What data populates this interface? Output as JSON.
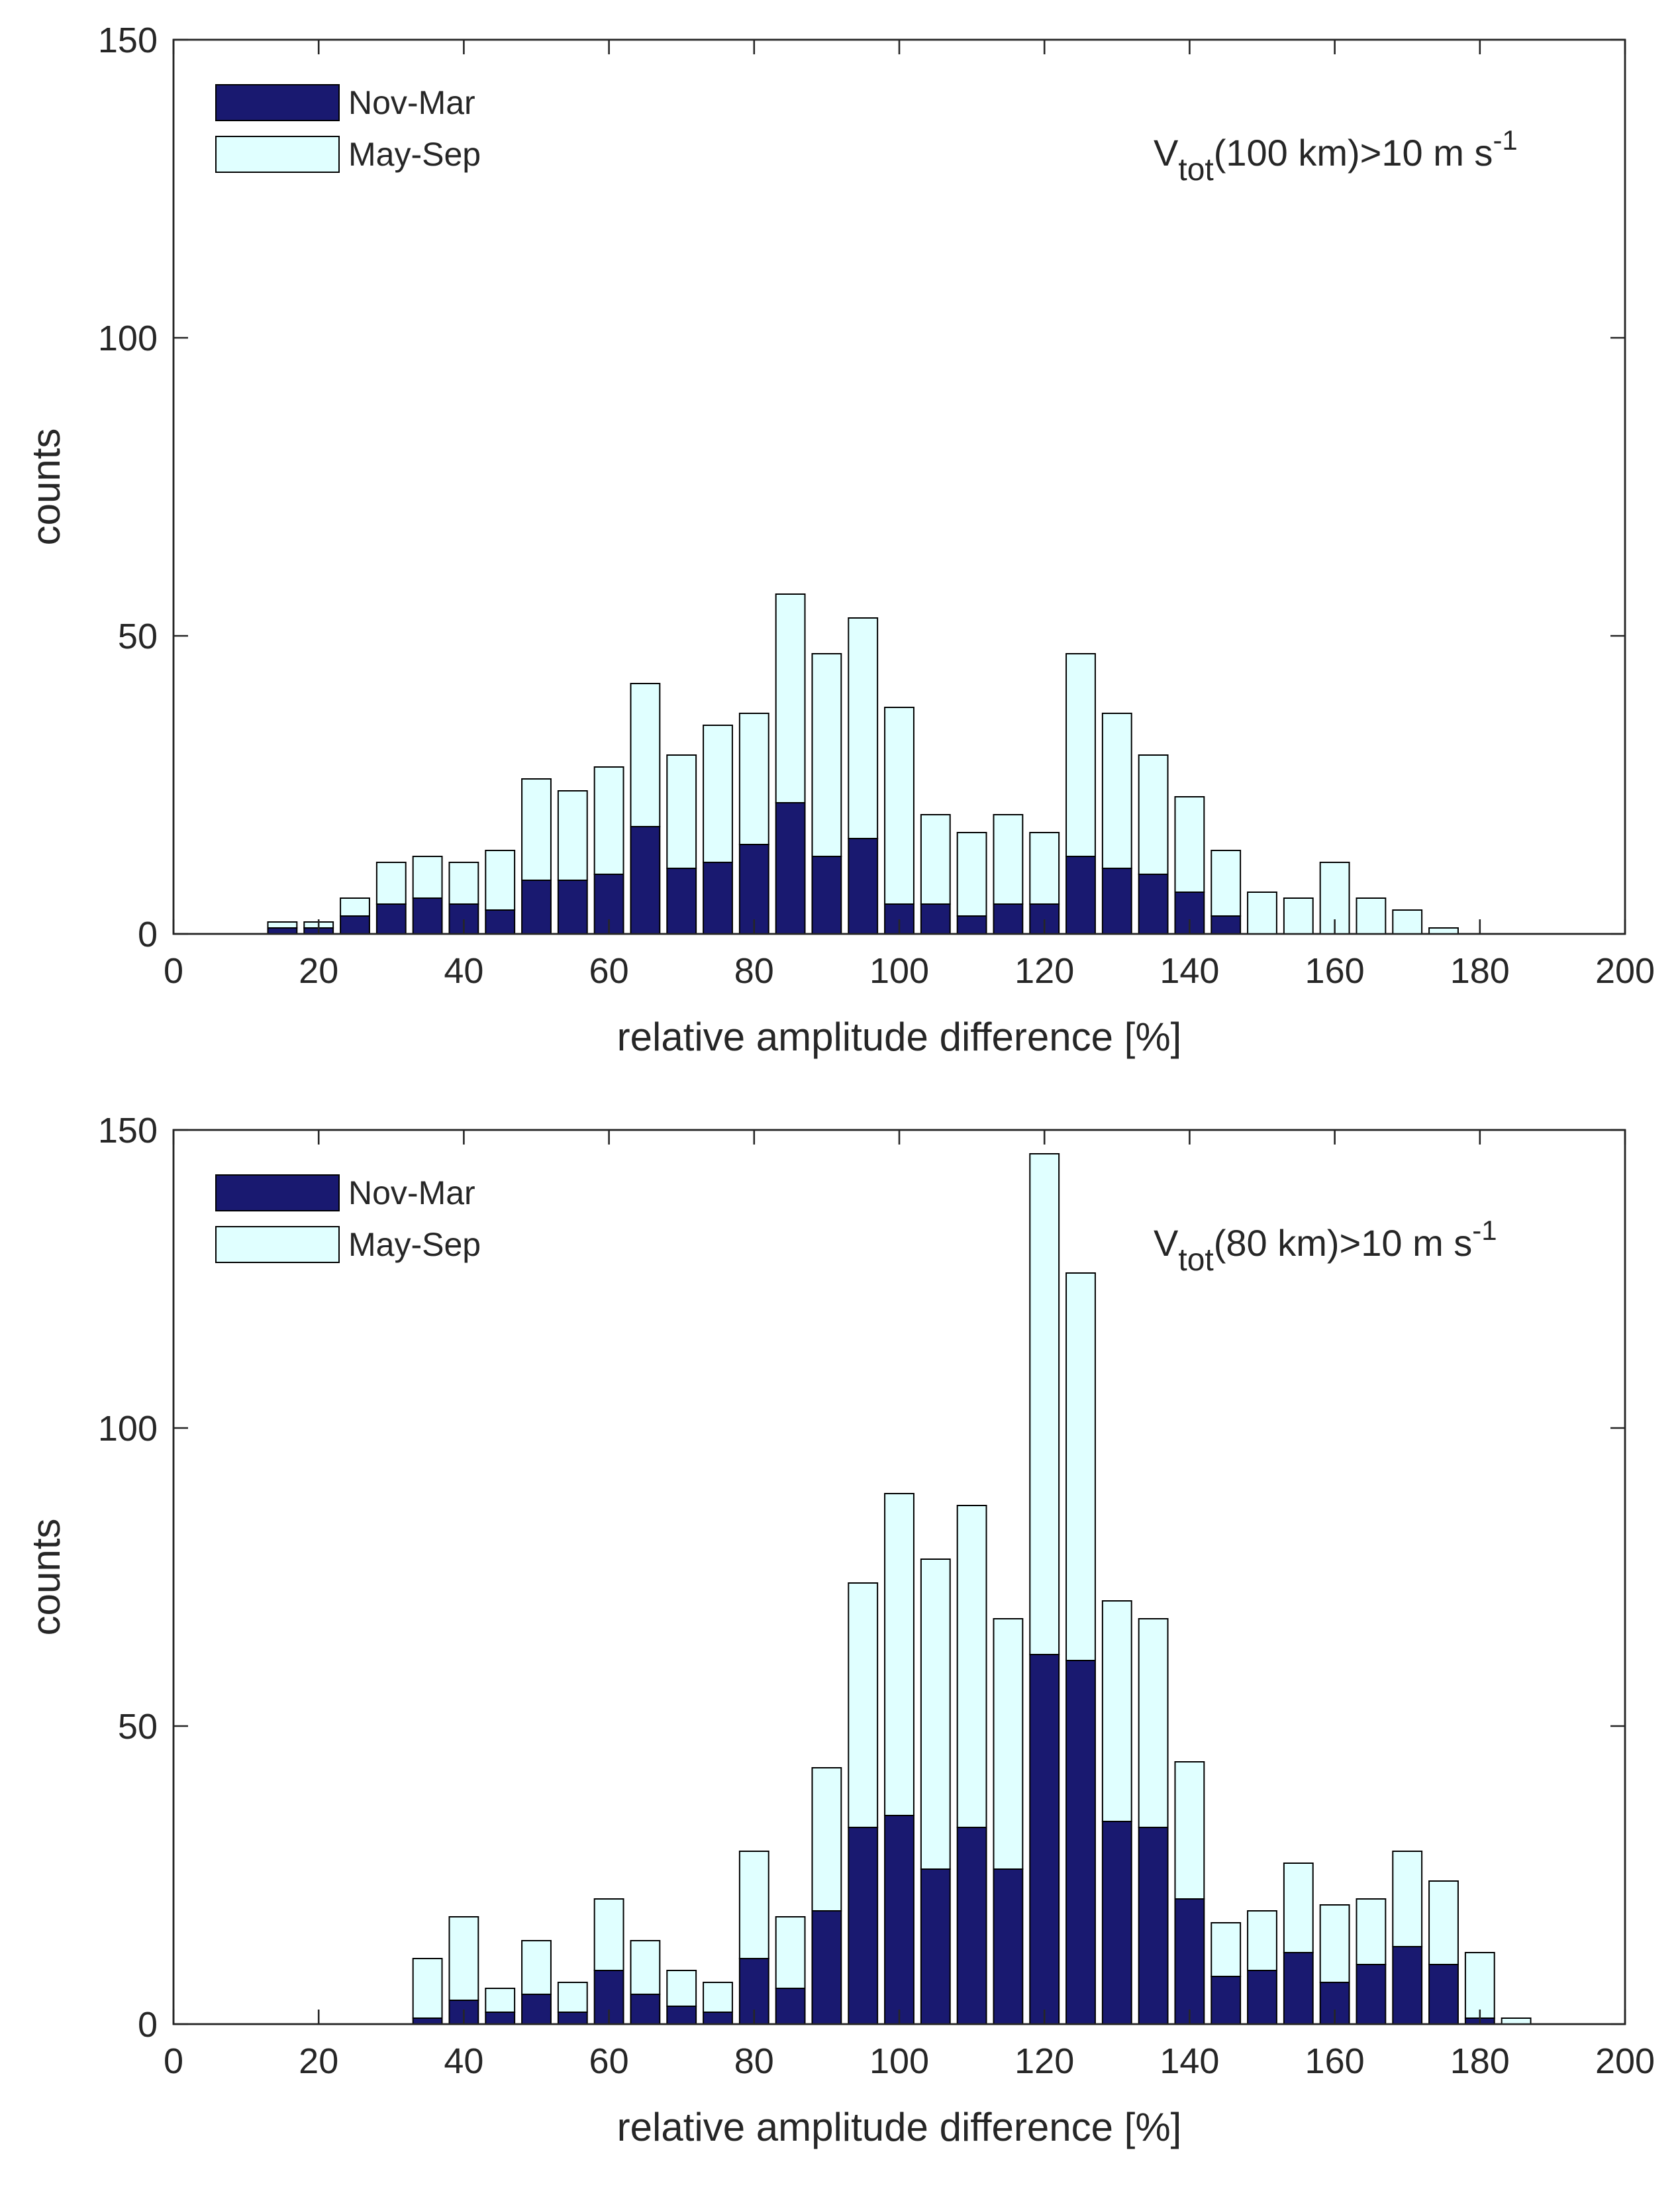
{
  "chart_data": [
    {
      "type": "bar",
      "stacked": true,
      "xlabel": "relative amplitude difference [%]",
      "ylabel": "counts",
      "xlim": [
        0,
        200
      ],
      "ylim": [
        0,
        150
      ],
      "xticks": [
        "0",
        "20",
        "40",
        "60",
        "80",
        "100",
        "120",
        "140",
        "160",
        "180",
        "200"
      ],
      "yticks": [
        "0",
        "50",
        "100",
        "150"
      ],
      "annotation": {
        "main": "V",
        "sub": "tot",
        "mid": "(100 km)>10 m s",
        "sup": "-1"
      },
      "legend": {
        "position": "top-left",
        "entries": [
          {
            "label": "Nov-Mar",
            "color": "#191970"
          },
          {
            "label": "May-Sep",
            "color": "#E0FFFF"
          }
        ]
      },
      "bin_centers": [
        5,
        10,
        15,
        20,
        25,
        30,
        35,
        40,
        45,
        50,
        55,
        60,
        65,
        70,
        75,
        80,
        85,
        90,
        95,
        100,
        105,
        110,
        115,
        120,
        125,
        130,
        135,
        140,
        145,
        150,
        155,
        160,
        165,
        170,
        175,
        180,
        185,
        190,
        195
      ],
      "series": [
        {
          "name": "Nov-Mar",
          "color": "#191970",
          "values": [
            0,
            0,
            1,
            1,
            3,
            5,
            6,
            5,
            4,
            9,
            9,
            10,
            18,
            11,
            12,
            15,
            22,
            13,
            16,
            5,
            5,
            3,
            5,
            5,
            13,
            11,
            10,
            7,
            3,
            0,
            0,
            0,
            0,
            0,
            0,
            0,
            0,
            0,
            0
          ]
        },
        {
          "name": "May-Sep",
          "color": "#E0FFFF",
          "values": [
            0,
            0,
            1,
            1,
            3,
            7,
            7,
            7,
            10,
            17,
            15,
            18,
            24,
            19,
            23,
            22,
            35,
            34,
            37,
            33,
            15,
            14,
            15,
            12,
            34,
            26,
            20,
            16,
            11,
            7,
            6,
            12,
            6,
            4,
            1,
            0,
            0,
            0,
            0
          ]
        }
      ]
    },
    {
      "type": "bar",
      "stacked": true,
      "xlabel": "relative amplitude difference [%]",
      "ylabel": "counts",
      "xlim": [
        0,
        200
      ],
      "ylim": [
        0,
        150
      ],
      "xticks": [
        "0",
        "20",
        "40",
        "60",
        "80",
        "100",
        "120",
        "140",
        "160",
        "180",
        "200"
      ],
      "yticks": [
        "0",
        "50",
        "100",
        "150"
      ],
      "annotation": {
        "main": "V",
        "sub": "tot",
        "mid": "(80 km)>10 m s",
        "sup": "-1"
      },
      "legend": {
        "position": "top-left",
        "entries": [
          {
            "label": "Nov-Mar",
            "color": "#191970"
          },
          {
            "label": "May-Sep",
            "color": "#E0FFFF"
          }
        ]
      },
      "bin_centers": [
        5,
        10,
        15,
        20,
        25,
        30,
        35,
        40,
        45,
        50,
        55,
        60,
        65,
        70,
        75,
        80,
        85,
        90,
        95,
        100,
        105,
        110,
        115,
        120,
        125,
        130,
        135,
        140,
        145,
        150,
        155,
        160,
        165,
        170,
        175,
        180,
        185,
        190,
        195
      ],
      "series": [
        {
          "name": "Nov-Mar",
          "color": "#191970",
          "values": [
            0,
            0,
            0,
            0,
            0,
            0,
            1,
            4,
            2,
            5,
            2,
            9,
            5,
            3,
            2,
            11,
            6,
            19,
            33,
            35,
            26,
            33,
            26,
            62,
            61,
            34,
            33,
            21,
            8,
            9,
            12,
            7,
            10,
            13,
            10,
            1,
            0,
            0,
            0
          ]
        },
        {
          "name": "May-Sep",
          "color": "#E0FFFF",
          "values": [
            0,
            0,
            0,
            0,
            0,
            0,
            10,
            14,
            4,
            9,
            5,
            12,
            9,
            6,
            5,
            18,
            12,
            24,
            41,
            54,
            52,
            54,
            42,
            84,
            65,
            37,
            35,
            23,
            9,
            10,
            15,
            13,
            11,
            16,
            14,
            11,
            1,
            0,
            0
          ]
        }
      ]
    }
  ]
}
